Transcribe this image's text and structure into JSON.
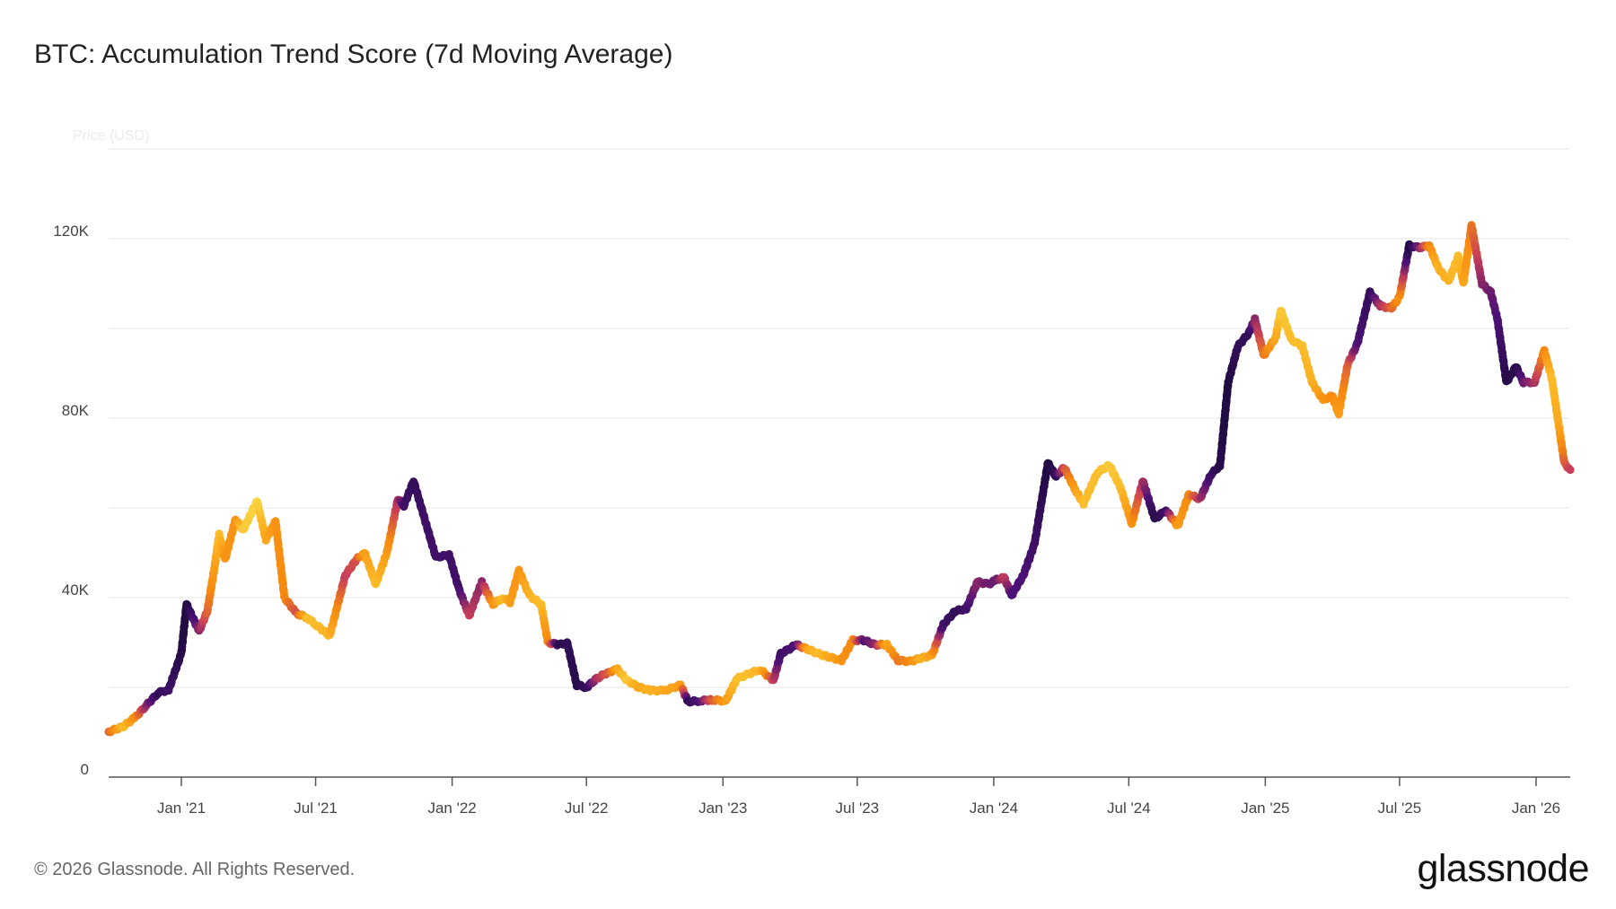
{
  "header": {
    "title": "BTC: Accumulation Trend Score (7d Moving Average)"
  },
  "footer": {
    "copyright": "© 2026 Glassnode. All Rights Reserved.",
    "logo": "glassnode"
  },
  "chart_data": {
    "type": "scatter",
    "title": "BTC: Accumulation Trend Score (7d Moving Average)",
    "ylabel": "Price (USD)",
    "ylim": [
      0,
      140000
    ],
    "y_ticks": [
      {
        "v": 0,
        "label": "0"
      },
      {
        "v": 40000,
        "label": "40K"
      },
      {
        "v": 80000,
        "label": "80K"
      },
      {
        "v": 120000,
        "label": "120K"
      }
    ],
    "y_grid": [
      0,
      20000,
      40000,
      60000,
      80000,
      100000,
      120000,
      140000
    ],
    "x_ticks": [
      {
        "d": "2021-01-01",
        "label": "Jan '21"
      },
      {
        "d": "2021-07-01",
        "label": "Jul '21"
      },
      {
        "d": "2022-01-01",
        "label": "Jan '22"
      },
      {
        "d": "2022-07-01",
        "label": "Jul '22"
      },
      {
        "d": "2023-01-01",
        "label": "Jan '23"
      },
      {
        "d": "2023-07-01",
        "label": "Jul '23"
      },
      {
        "d": "2024-01-01",
        "label": "Jan '24"
      },
      {
        "d": "2024-07-01",
        "label": "Jul '24"
      },
      {
        "d": "2025-01-01",
        "label": "Jan '25"
      },
      {
        "d": "2025-07-01",
        "label": "Jul '25"
      },
      {
        "d": "2026-01-01",
        "label": "Jan '26"
      }
    ],
    "xlim": [
      "2020-09-25",
      "2026-02-16"
    ],
    "grid": true,
    "color_encoding": "accumulation trend score 0-1 (dark purple = 0, yellow = 1)",
    "colors": [
      "#1a0b3b",
      "#4c1175",
      "#c63e5a",
      "#f6890f",
      "#fbb122",
      "#f7e04b"
    ],
    "points": [
      [
        "2020-09-25",
        10100,
        0.5
      ],
      [
        "2020-10-15",
        11300,
        0.85
      ],
      [
        "2020-11-01",
        13500,
        0.6
      ],
      [
        "2020-11-15",
        16000,
        0.3
      ],
      [
        "2020-12-01",
        18800,
        0.1
      ],
      [
        "2020-12-15",
        19500,
        0.15
      ],
      [
        "2021-01-01",
        27600,
        0.05
      ],
      [
        "2021-01-08",
        38500,
        0.02
      ],
      [
        "2021-01-25",
        32500,
        0.3
      ],
      [
        "2021-02-05",
        37000,
        0.5
      ],
      [
        "2021-02-15",
        47000,
        0.7
      ],
      [
        "2021-02-21",
        54000,
        0.85
      ],
      [
        "2021-03-01",
        48500,
        0.65
      ],
      [
        "2021-03-15",
        57500,
        0.65
      ],
      [
        "2021-03-25",
        55000,
        0.9
      ],
      [
        "2021-04-13",
        61500,
        0.95
      ],
      [
        "2021-04-25",
        53000,
        0.75
      ],
      [
        "2021-05-08",
        57000,
        0.65
      ],
      [
        "2021-05-20",
        40000,
        0.6
      ],
      [
        "2021-06-05",
        36500,
        0.45
      ],
      [
        "2021-06-20",
        35500,
        0.85
      ],
      [
        "2021-07-01",
        34000,
        0.85
      ],
      [
        "2021-07-20",
        31500,
        0.8
      ],
      [
        "2021-08-10",
        45000,
        0.4
      ],
      [
        "2021-08-25",
        48500,
        0.45
      ],
      [
        "2021-09-05",
        50000,
        0.7
      ],
      [
        "2021-09-20",
        43000,
        0.85
      ],
      [
        "2021-10-05",
        50000,
        0.7
      ],
      [
        "2021-10-20",
        62000,
        0.35
      ],
      [
        "2021-10-28",
        60500,
        0.15
      ],
      [
        "2021-11-10",
        66000,
        0.1
      ],
      [
        "2021-11-25",
        57500,
        0.15
      ],
      [
        "2021-12-10",
        49000,
        0.15
      ],
      [
        "2021-12-28",
        49500,
        0.15
      ],
      [
        "2022-01-10",
        42000,
        0.15
      ],
      [
        "2022-01-24",
        36000,
        0.4
      ],
      [
        "2022-02-10",
        43500,
        0.3
      ],
      [
        "2022-02-25",
        38500,
        0.65
      ],
      [
        "2022-03-10",
        40000,
        0.85
      ],
      [
        "2022-03-20",
        39000,
        0.7
      ],
      [
        "2022-04-01",
        46000,
        0.65
      ],
      [
        "2022-04-15",
        40500,
        0.8
      ],
      [
        "2022-05-01",
        38500,
        0.85
      ],
      [
        "2022-05-10",
        30000,
        0.6
      ],
      [
        "2022-05-25",
        29500,
        0.05
      ],
      [
        "2022-06-05",
        30000,
        0.1
      ],
      [
        "2022-06-18",
        20500,
        0.05
      ],
      [
        "2022-07-01",
        20000,
        0.1
      ],
      [
        "2022-07-15",
        22000,
        0.35
      ],
      [
        "2022-08-01",
        23500,
        0.5
      ],
      [
        "2022-08-12",
        24000,
        0.75
      ],
      [
        "2022-08-25",
        21500,
        0.9
      ],
      [
        "2022-09-10",
        20000,
        0.75
      ],
      [
        "2022-09-25",
        19300,
        0.8
      ],
      [
        "2022-10-15",
        19300,
        0.75
      ],
      [
        "2022-11-05",
        20500,
        0.7
      ],
      [
        "2022-11-15",
        16800,
        0.1
      ],
      [
        "2022-12-01",
        17000,
        0.2
      ],
      [
        "2022-12-15",
        17200,
        0.45
      ],
      [
        "2023-01-05",
        17000,
        0.7
      ],
      [
        "2023-01-20",
        22000,
        0.85
      ],
      [
        "2023-02-05",
        23000,
        0.85
      ],
      [
        "2023-02-20",
        24000,
        0.8
      ],
      [
        "2023-03-10",
        21500,
        0.4
      ],
      [
        "2023-03-20",
        27500,
        0.15
      ],
      [
        "2023-04-10",
        29500,
        0.2
      ],
      [
        "2023-04-25",
        28500,
        0.75
      ],
      [
        "2023-05-10",
        27500,
        0.85
      ],
      [
        "2023-05-25",
        26700,
        0.75
      ],
      [
        "2023-06-10",
        26000,
        0.65
      ],
      [
        "2023-06-25",
        30500,
        0.6
      ],
      [
        "2023-07-10",
        30500,
        0.2
      ],
      [
        "2023-07-25",
        29500,
        0.3
      ],
      [
        "2023-08-10",
        29500,
        0.75
      ],
      [
        "2023-08-25",
        26000,
        0.55
      ],
      [
        "2023-09-10",
        25800,
        0.6
      ],
      [
        "2023-09-25",
        26500,
        0.8
      ],
      [
        "2023-10-10",
        27200,
        0.7
      ],
      [
        "2023-10-25",
        34000,
        0.15
      ],
      [
        "2023-11-10",
        37000,
        0.1
      ],
      [
        "2023-11-25",
        37500,
        0.15
      ],
      [
        "2023-12-10",
        43500,
        0.3
      ],
      [
        "2023-12-25",
        43000,
        0.25
      ],
      [
        "2024-01-05",
        44000,
        0.25
      ],
      [
        "2024-01-15",
        44500,
        0.4
      ],
      [
        "2024-01-25",
        40500,
        0.2
      ],
      [
        "2024-02-10",
        45000,
        0.2
      ],
      [
        "2024-02-25",
        52000,
        0.15
      ],
      [
        "2024-03-14",
        70000,
        0.02
      ],
      [
        "2024-03-25",
        67000,
        0.1
      ],
      [
        "2024-04-05",
        69000,
        0.45
      ],
      [
        "2024-04-20",
        64000,
        0.7
      ],
      [
        "2024-05-01",
        61000,
        0.85
      ],
      [
        "2024-05-20",
        68000,
        0.85
      ],
      [
        "2024-06-05",
        69500,
        0.9
      ],
      [
        "2024-06-20",
        64500,
        0.85
      ],
      [
        "2024-07-05",
        56500,
        0.65
      ],
      [
        "2024-07-20",
        66000,
        0.35
      ],
      [
        "2024-08-05",
        57500,
        0.05
      ],
      [
        "2024-08-20",
        59500,
        0.15
      ],
      [
        "2024-09-05",
        56000,
        0.7
      ],
      [
        "2024-09-20",
        63000,
        0.6
      ],
      [
        "2024-10-05",
        62000,
        0.35
      ],
      [
        "2024-10-20",
        67500,
        0.15
      ],
      [
        "2024-11-01",
        69500,
        0.05
      ],
      [
        "2024-11-12",
        88000,
        0.02
      ],
      [
        "2024-11-25",
        96000,
        0.1
      ],
      [
        "2024-12-10",
        99000,
        0.1
      ],
      [
        "2024-12-18",
        102000,
        0.3
      ],
      [
        "2024-12-30",
        94000,
        0.55
      ],
      [
        "2025-01-15",
        98000,
        0.75
      ],
      [
        "2025-01-22",
        104000,
        0.9
      ],
      [
        "2025-02-05",
        97500,
        0.85
      ],
      [
        "2025-02-20",
        96000,
        0.85
      ],
      [
        "2025-03-05",
        88000,
        0.8
      ],
      [
        "2025-03-20",
        84000,
        0.65
      ],
      [
        "2025-04-01",
        85000,
        0.6
      ],
      [
        "2025-04-10",
        81000,
        0.7
      ],
      [
        "2025-04-22",
        92000,
        0.5
      ],
      [
        "2025-05-05",
        96500,
        0.2
      ],
      [
        "2025-05-22",
        108000,
        0.1
      ],
      [
        "2025-06-05",
        105000,
        0.35
      ],
      [
        "2025-06-20",
        104500,
        0.5
      ],
      [
        "2025-07-01",
        107000,
        0.65
      ],
      [
        "2025-07-14",
        118500,
        0.02
      ],
      [
        "2025-07-28",
        118000,
        0.3
      ],
      [
        "2025-08-10",
        118500,
        0.6
      ],
      [
        "2025-08-22",
        113500,
        0.8
      ],
      [
        "2025-09-05",
        110500,
        0.8
      ],
      [
        "2025-09-18",
        116000,
        0.85
      ],
      [
        "2025-09-25",
        110000,
        0.75
      ],
      [
        "2025-10-06",
        123000,
        0.55
      ],
      [
        "2025-10-20",
        110000,
        0.3
      ],
      [
        "2025-11-01",
        108000,
        0.25
      ],
      [
        "2025-11-10",
        102000,
        0.2
      ],
      [
        "2025-11-22",
        88000,
        0.05
      ],
      [
        "2025-12-05",
        91500,
        0.05
      ],
      [
        "2025-12-15",
        88000,
        0.25
      ],
      [
        "2025-12-30",
        88000,
        0.35
      ],
      [
        "2026-01-12",
        95000,
        0.6
      ],
      [
        "2026-01-22",
        89000,
        0.85
      ],
      [
        "2026-02-01",
        78000,
        0.75
      ],
      [
        "2026-02-08",
        70000,
        0.5
      ],
      [
        "2026-02-16",
        68500,
        0.4
      ]
    ]
  }
}
